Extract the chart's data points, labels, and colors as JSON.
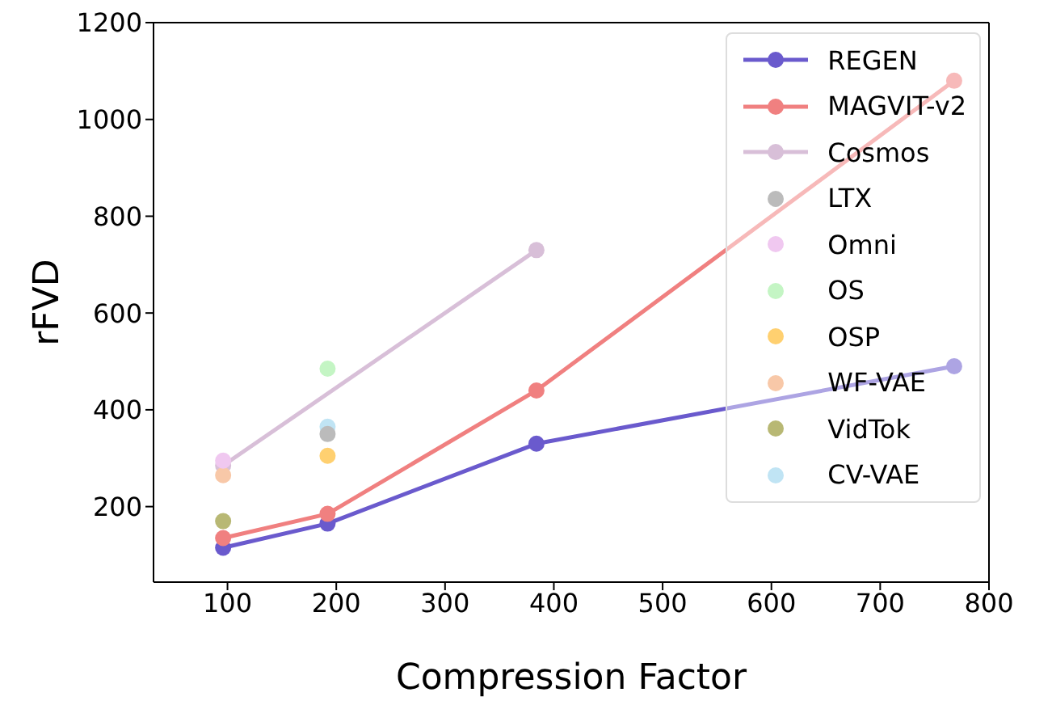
{
  "chart_data": {
    "type": "line",
    "xlabel": "Compression Factor",
    "ylabel": "rFVD",
    "xlim": [
      32,
      800
    ],
    "xticks": [
      100,
      200,
      300,
      400,
      500,
      600,
      700,
      800
    ],
    "ylim": [
      44,
      1200
    ],
    "yticks": [
      200,
      400,
      600,
      800,
      1000,
      1200
    ],
    "grid": false,
    "legend": "top right",
    "marker": "circle",
    "line_style": "solid",
    "series": [
      {
        "name": "REGEN",
        "type": "line",
        "color": "#6a5acd",
        "x": [
          96,
          192,
          384,
          768
        ],
        "values": [
          115,
          165,
          330,
          490
        ]
      },
      {
        "name": "MAGVIT-v2",
        "type": "line",
        "color": "#f08080",
        "x": [
          96,
          192,
          384,
          768
        ],
        "values": [
          135,
          185,
          440,
          1080
        ]
      },
      {
        "name": "Cosmos",
        "type": "line",
        "color": "#d8bfd8",
        "x": [
          96,
          384
        ],
        "values": [
          285,
          730
        ]
      },
      {
        "name": "LTX",
        "type": "scatter",
        "color": "#bbbbbb",
        "x": [
          192
        ],
        "values": [
          350
        ]
      },
      {
        "name": "Omni",
        "type": "scatter",
        "color": "#f0c8f0",
        "x": [
          96
        ],
        "values": [
          295
        ]
      },
      {
        "name": "OS",
        "type": "scatter",
        "color": "#c4f5c4",
        "x": [
          192
        ],
        "values": [
          485
        ]
      },
      {
        "name": "OSP",
        "type": "scatter",
        "color": "#ffd070",
        "x": [
          192
        ],
        "values": [
          305
        ]
      },
      {
        "name": "WF-VAE",
        "type": "scatter",
        "color": "#f8c8a8",
        "x": [
          96
        ],
        "values": [
          265
        ]
      },
      {
        "name": "VidTok",
        "type": "scatter",
        "color": "#b8b874",
        "x": [
          96
        ],
        "values": [
          170
        ]
      },
      {
        "name": "CV-VAE",
        "type": "scatter",
        "color": "#c0e4f4",
        "x": [
          192
        ],
        "values": [
          365
        ]
      }
    ]
  }
}
